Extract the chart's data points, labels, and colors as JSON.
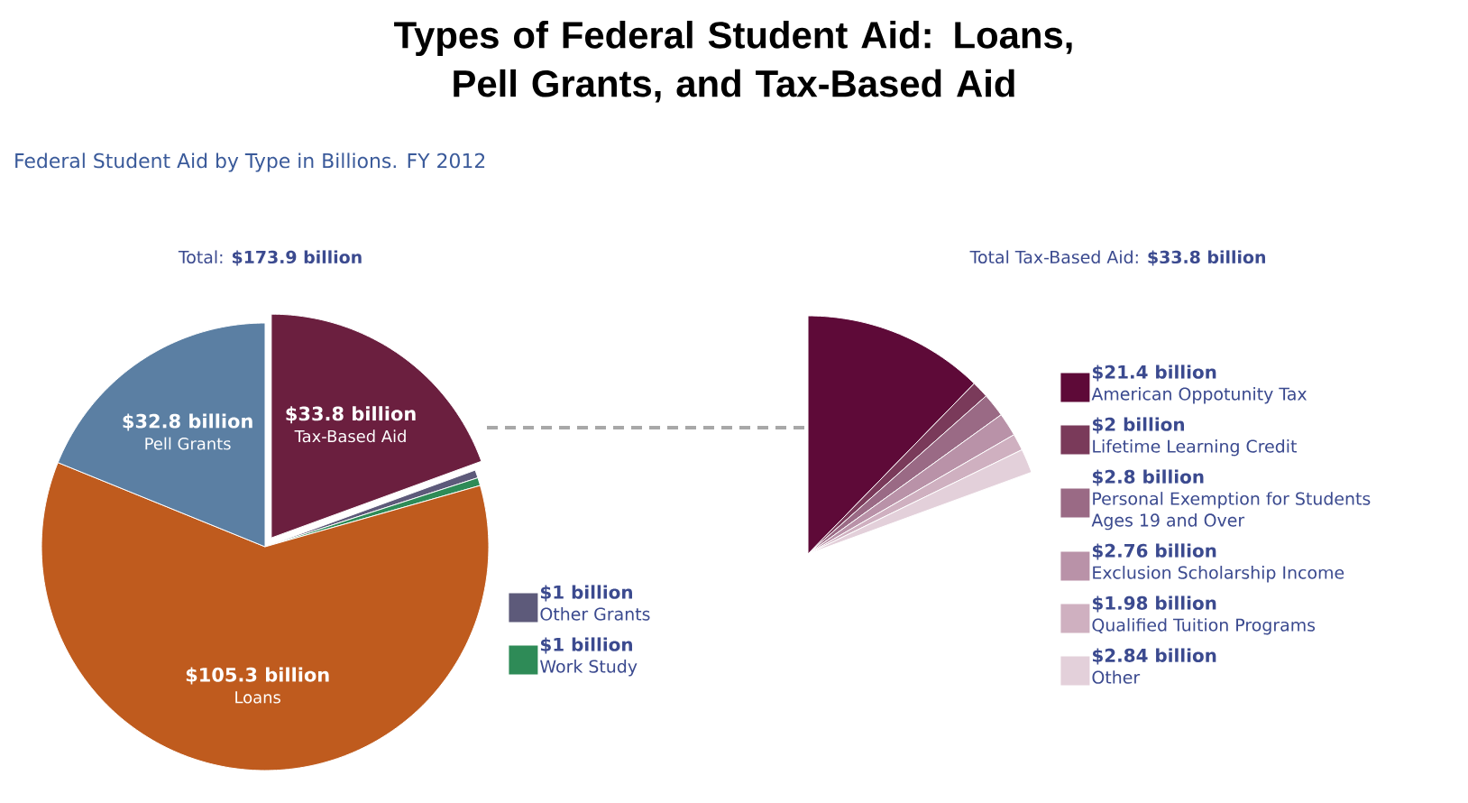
{
  "chart_data": [
    {
      "type": "pie",
      "title": "Types of Federal Student Aid: Loans, Pell Grants, and Tax-Based Aid",
      "subtitle": "Federal Student Aid by Type in Billions. FY 2012",
      "annotations": [
        "Total: **$173.9 billion**"
      ],
      "categories": [
        "Tax-Based Aid",
        "Other Grants",
        "Work Study",
        "Loans",
        "Pell Grants"
      ],
      "values": [
        33.8,
        1,
        1,
        105.3,
        32.8
      ],
      "value_labels": [
        "$33.8 billion",
        "$1 billion",
        "$1 billion",
        "$105.3 billion",
        "$32.8 billion"
      ],
      "colors": [
        "#6b1f3f",
        "#5d5a7a",
        "#2e8b57",
        "#bf5b1e",
        "#5b7fa3"
      ],
      "legend": "right"
    },
    {
      "type": "pie",
      "title": "Total Tax-Based Aid: **$33.8 billion**",
      "categories": [
        "American Oppotunity Tax",
        "Lifetime Learning Credit",
        "Personal Exemption for Students Ages 19 and Over",
        "Exclusion Scholarship Income",
        "Qualified Tuition Programs",
        "Other"
      ],
      "values": [
        21.4,
        2,
        2.8,
        2.76,
        1.98,
        2.84
      ],
      "value_labels": [
        "$21.4 billion",
        "$2 billion",
        "$2.8 billion",
        "$2.76 billion",
        "$1.98 billion",
        "$2.84 billion"
      ],
      "colors": [
        "#5e0a38",
        "#7a3a5a",
        "#9a6a85",
        "#b992a8",
        "#cfb0c0",
        "#e3d0da"
      ],
      "legend": "right"
    }
  ]
}
